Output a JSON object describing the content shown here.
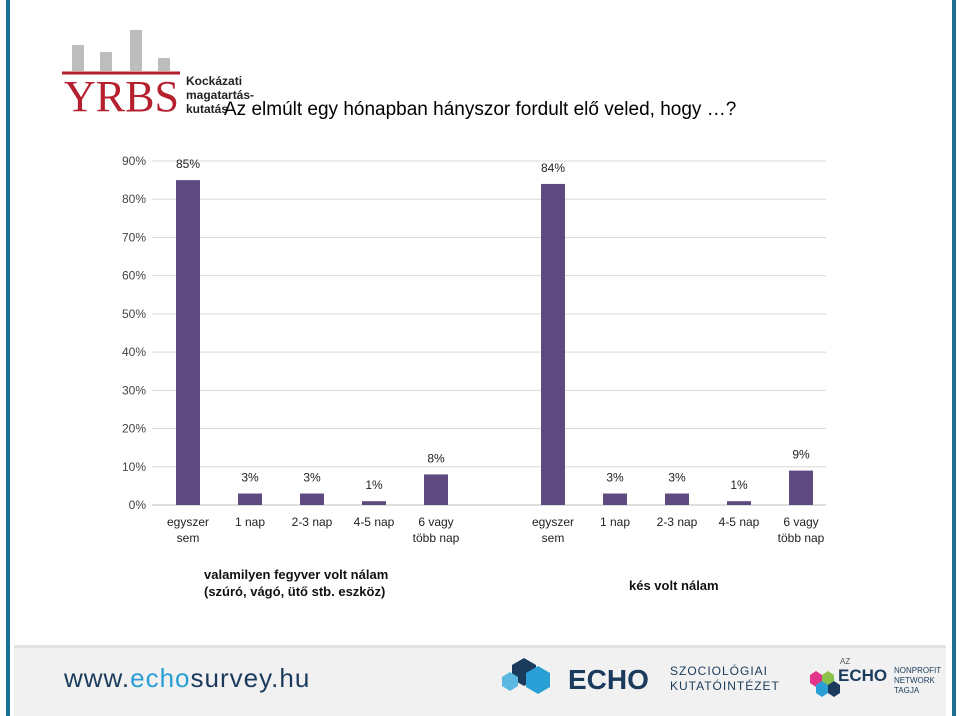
{
  "title": "Az elmúlt egy hónapban hányszor fordult elő veled, hogy …?",
  "logo": {
    "letters": "YRBS",
    "line1": "Kockázati",
    "line2": "magatartás-",
    "line3": "kutatás"
  },
  "chart_data": {
    "type": "bar",
    "ylim": [
      0,
      90
    ],
    "yticks": [
      "0%",
      "10%",
      "20%",
      "30%",
      "40%",
      "50%",
      "60%",
      "70%",
      "80%",
      "90%"
    ],
    "grid": true,
    "bar_color": "#5e4a7e",
    "groups": [
      {
        "name": "valamilyen fegyver volt nálam (szúró, vágó, ütő stb. eszköz)",
        "name_lines": [
          "valamilyen fegyver volt nálam",
          "(szúró, vágó, ütő stb. eszköz)"
        ],
        "categories": [
          [
            "egyszer",
            "sem"
          ],
          [
            "1 nap"
          ],
          [
            "2-3 nap"
          ],
          [
            "4-5 nap"
          ],
          [
            "6 vagy",
            "több nap"
          ]
        ],
        "values": [
          85,
          3,
          3,
          1,
          8
        ],
        "labels": [
          "85%",
          "3%",
          "3%",
          "1%",
          "8%"
        ]
      },
      {
        "name": "kés volt nálam",
        "name_lines": [
          "kés volt nálam"
        ],
        "categories": [
          [
            "egyszer",
            "sem"
          ],
          [
            "1 nap"
          ],
          [
            "2-3 nap"
          ],
          [
            "4-5 nap"
          ],
          [
            "6 vagy",
            "több nap"
          ]
        ],
        "values": [
          84,
          3,
          3,
          1,
          9
        ],
        "labels": [
          "84%",
          "3%",
          "3%",
          "1%",
          "9%"
        ]
      }
    ]
  },
  "footer": {
    "url_prefix": "www.",
    "url_highlight": "echo",
    "url_suffix": "survey.hu",
    "echo_brand": "ECHO",
    "echo_sub1": "SZOCIOLÓGIAI",
    "echo_sub2": "KUTATÓINTÉZET",
    "np_az": "AZ",
    "np_brand": "ECHO",
    "np_line1": "NONPROFIT",
    "np_line2": "NETWORK",
    "np_line3": "TAGJA"
  },
  "colors": {
    "frame": "#1d6f8f",
    "logo_red": "#b5202e",
    "logo_gray": "#bdbdbd",
    "footer_navy": "#1a3b5c",
    "footer_blue": "#2a9fd6"
  }
}
